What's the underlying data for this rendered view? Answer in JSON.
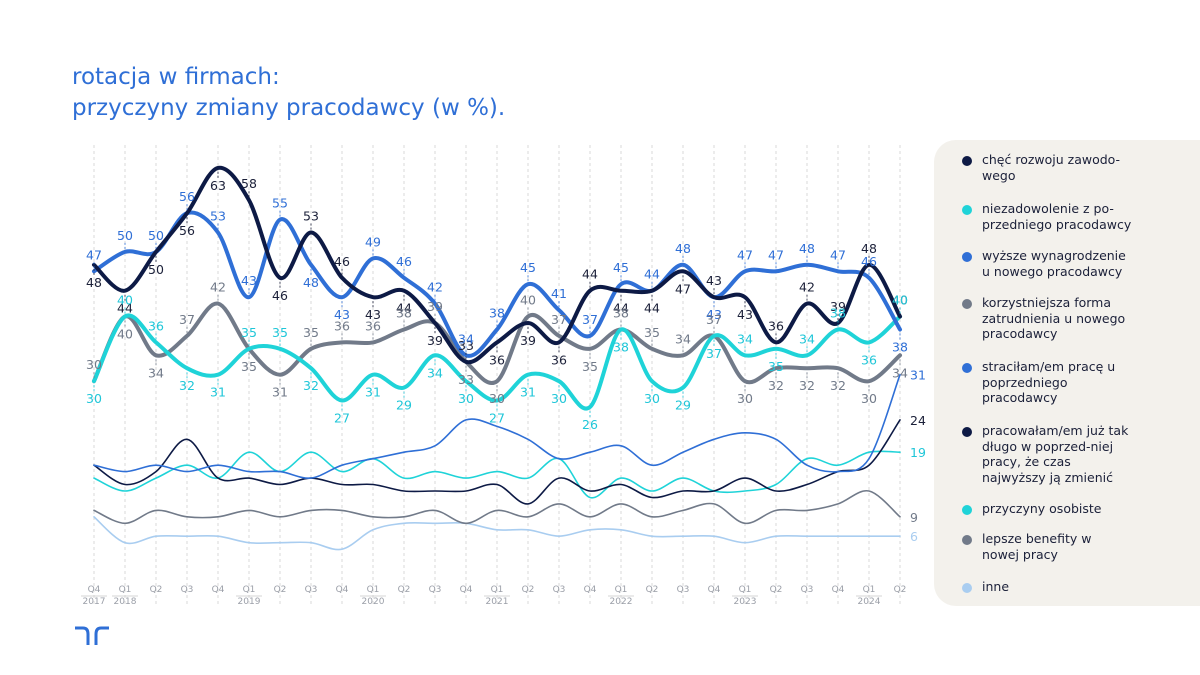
{
  "title": {
    "line1": "rotacja w firmach:",
    "line2": "przyczyny zmiany pracodawcy (w %)."
  },
  "colors": {
    "title": "#2f6fd6",
    "legend_bg": "#f3f1ec",
    "grid": "#d9d9d9"
  },
  "chart_data": {
    "type": "line",
    "x_quarters": [
      "Q4",
      "Q1",
      "Q2",
      "Q3",
      "Q4",
      "Q1",
      "Q2",
      "Q3",
      "Q4",
      "Q1",
      "Q2",
      "Q3",
      "Q4",
      "Q1",
      "Q2",
      "Q3",
      "Q4",
      "Q1",
      "Q2",
      "Q3",
      "Q4",
      "Q1",
      "Q2",
      "Q3",
      "Q4",
      "Q1",
      "Q2"
    ],
    "x_years": [
      {
        "index": 0,
        "label": "2017"
      },
      {
        "index": 1,
        "label": "2018"
      },
      {
        "index": 5,
        "label": "2019"
      },
      {
        "index": 9,
        "label": "2020"
      },
      {
        "index": 13,
        "label": "2021"
      },
      {
        "index": 17,
        "label": "2022"
      },
      {
        "index": 21,
        "label": "2023"
      },
      {
        "index": 25,
        "label": "2024"
      }
    ],
    "series": [
      {
        "name": "chęć rozwoju zawodowego",
        "color": "#0d1a45",
        "width": 4,
        "label_color": "#1b2039",
        "values": [
          48,
          44,
          50,
          56,
          63,
          58,
          46,
          53,
          46,
          43,
          44,
          39,
          33,
          36,
          39,
          36,
          44,
          44,
          44,
          47,
          43,
          43,
          36,
          42,
          39,
          48,
          40
        ],
        "label_pos": [
          "below",
          "below",
          "below",
          "below",
          "below",
          "above",
          "below",
          "above",
          "above",
          "below",
          "below",
          "below",
          "above",
          "below",
          "below",
          "below",
          "above",
          "below",
          "below",
          "below",
          "above",
          "below",
          "above",
          "above",
          "above",
          "above",
          "above"
        ]
      },
      {
        "name": "niezadowolenie z poprzedniego pracodawcy",
        "color": "#1fd3d8",
        "width": 4,
        "label_color": "#1fc6d8",
        "values": [
          30,
          40,
          36,
          32,
          31,
          35,
          35,
          32,
          27,
          31,
          29,
          34,
          30,
          27,
          31,
          30,
          26,
          38,
          30,
          29,
          37,
          34,
          35,
          34,
          38,
          36,
          40
        ],
        "label_pos": [
          "below",
          "above",
          "above",
          "below",
          "below",
          "above",
          "above",
          "below",
          "below",
          "below",
          "below",
          "below",
          "below",
          "below",
          "below",
          "below",
          "below",
          "below",
          "below",
          "below",
          "below",
          "above",
          "below",
          "above",
          "above",
          "below",
          "above"
        ]
      },
      {
        "name": "wyższe wynagrodzenie u nowego pracodawcy",
        "color": "#2f6fd6",
        "width": 4,
        "label_color": "#2f6fd6",
        "values": [
          47,
          50,
          50,
          56,
          53,
          43,
          55,
          48,
          43,
          49,
          46,
          42,
          34,
          38,
          45,
          41,
          37,
          45,
          44,
          48,
          43,
          47,
          47,
          48,
          47,
          46,
          38
        ],
        "label_pos": [
          "above",
          "above",
          "above",
          "above",
          "above",
          "above",
          "above",
          "below",
          "below",
          "above",
          "above",
          "above",
          "above",
          "above",
          "above",
          "above",
          "above",
          "above",
          "above",
          "above",
          "below",
          "above",
          "above",
          "above",
          "above",
          "above",
          "below"
        ]
      },
      {
        "name": "korzystniejsza forma zatrudnienia u nowego pracodawcy",
        "color": "#717a89",
        "width": 4,
        "label_color": "#717a89",
        "values": [
          30,
          40,
          34,
          37,
          42,
          35,
          31,
          35,
          36,
          36,
          38,
          39,
          33,
          30,
          40,
          37,
          35,
          38,
          35,
          34,
          37,
          30,
          32,
          32,
          32,
          30,
          34
        ],
        "label_pos": [
          "above",
          "below",
          "below",
          "above",
          "above",
          "below",
          "below",
          "above",
          "above",
          "above",
          "above",
          "above",
          "below",
          "below",
          "above",
          "above",
          "below",
          "above",
          "above",
          "above",
          "above",
          "below",
          "below",
          "below",
          "below",
          "below",
          "below"
        ]
      },
      {
        "name": "straciłam/em pracę u poprzedniego pracodawcy",
        "color": "#2f6fd6",
        "width": 1.6,
        "label_color": "#2f6fd6",
        "values": [
          17,
          16,
          17,
          16,
          17,
          16,
          16,
          15,
          17,
          18,
          19,
          20,
          24,
          23,
          21,
          18,
          19,
          20,
          17,
          19,
          21,
          22,
          21,
          17,
          16,
          18,
          31
        ],
        "label_pos": [
          "none",
          "none",
          "none",
          "none",
          "none",
          "none",
          "none",
          "none",
          "none",
          "none",
          "none",
          "none",
          "none",
          "none",
          "none",
          "none",
          "none",
          "none",
          "none",
          "none",
          "none",
          "none",
          "none",
          "none",
          "none",
          "none",
          "right"
        ]
      },
      {
        "name": "pracowałam/em już tak długo w poprzedniej pracy, że czas najwyższy ją zmienić",
        "color": "#0d1a45",
        "width": 1.6,
        "label_color": "#1b2039",
        "values": [
          17,
          14,
          16,
          21,
          15,
          15,
          14,
          15,
          14,
          14,
          13,
          13,
          13,
          14,
          11,
          15,
          13,
          14,
          12,
          13,
          13,
          15,
          13,
          14,
          16,
          17,
          24
        ],
        "label_pos": [
          "none",
          "none",
          "none",
          "none",
          "none",
          "none",
          "none",
          "none",
          "none",
          "none",
          "none",
          "none",
          "none",
          "none",
          "none",
          "none",
          "none",
          "none",
          "none",
          "none",
          "none",
          "none",
          "none",
          "none",
          "none",
          "none",
          "right"
        ]
      },
      {
        "name": "przyczyny osobiste",
        "color": "#1fd3d8",
        "width": 1.6,
        "label_color": "#1fc6d8",
        "values": [
          15,
          13,
          15,
          17,
          15,
          19,
          16,
          19,
          16,
          18,
          15,
          16,
          15,
          16,
          15,
          18,
          12,
          15,
          13,
          15,
          13,
          13,
          14,
          18,
          17,
          19,
          19
        ],
        "label_pos": [
          "none",
          "none",
          "none",
          "none",
          "none",
          "none",
          "none",
          "none",
          "none",
          "none",
          "none",
          "none",
          "none",
          "none",
          "none",
          "none",
          "none",
          "none",
          "none",
          "none",
          "none",
          "none",
          "none",
          "none",
          "none",
          "none",
          "right"
        ]
      },
      {
        "name": "lepsze benefity w nowej pracy",
        "color": "#717a89",
        "width": 1.6,
        "label_color": "#717a89",
        "values": [
          10,
          8,
          10,
          9,
          9,
          10,
          9,
          10,
          10,
          9,
          9,
          10,
          8,
          10,
          9,
          11,
          9,
          11,
          9,
          10,
          11,
          8,
          10,
          10,
          11,
          13,
          9
        ],
        "label_pos": [
          "none",
          "none",
          "none",
          "none",
          "none",
          "none",
          "none",
          "none",
          "none",
          "none",
          "none",
          "none",
          "none",
          "none",
          "none",
          "none",
          "none",
          "none",
          "none",
          "none",
          "none",
          "none",
          "none",
          "none",
          "none",
          "none",
          "right"
        ]
      },
      {
        "name": "inne",
        "color": "#a9cdf0",
        "width": 1.6,
        "label_color": "#a9cdf0",
        "values": [
          9,
          5,
          6,
          6,
          6,
          5,
          5,
          5,
          4,
          7,
          8,
          8,
          8,
          7,
          7,
          6,
          7,
          7,
          6,
          6,
          6,
          5,
          6,
          6,
          6,
          6,
          6
        ],
        "label_pos": [
          "none",
          "none",
          "none",
          "none",
          "none",
          "none",
          "none",
          "none",
          "none",
          "none",
          "none",
          "none",
          "none",
          "none",
          "none",
          "none",
          "none",
          "none",
          "none",
          "none",
          "none",
          "none",
          "none",
          "none",
          "none",
          "none",
          "right"
        ]
      }
    ],
    "ylim": [
      0,
      65
    ],
    "grid": "vertical-dashed",
    "legend": "right"
  },
  "legend": [
    {
      "label": "chęć rozwoju zawodo-wego",
      "color": "#0d1a45"
    },
    {
      "label": "niezadowolenie z po-przedniego pracodawcy",
      "color": "#1fd3d8"
    },
    {
      "label": "wyższe wynagrodzenie u nowego pracodawcy",
      "color": "#2f6fd6"
    },
    {
      "label": "korzystniejsza forma zatrudnienia u nowego pracodawcy",
      "color": "#717a89"
    },
    {
      "label": "straciłam/em pracę u poprzedniego pracodawcy",
      "color": "#2f6fd6"
    },
    {
      "label": "pracowałam/em już tak długo w poprzed-niej pracy, że czas najwyższy ją zmienić",
      "color": "#0d1a45"
    },
    {
      "label": "przyczyny osobiste",
      "color": "#1fd3d8"
    },
    {
      "label": "lepsze benefity w nowej pracy",
      "color": "#717a89"
    },
    {
      "label": "inne",
      "color": "#a9cdf0"
    }
  ],
  "logo": {
    "name": "brand-logo-icon"
  }
}
